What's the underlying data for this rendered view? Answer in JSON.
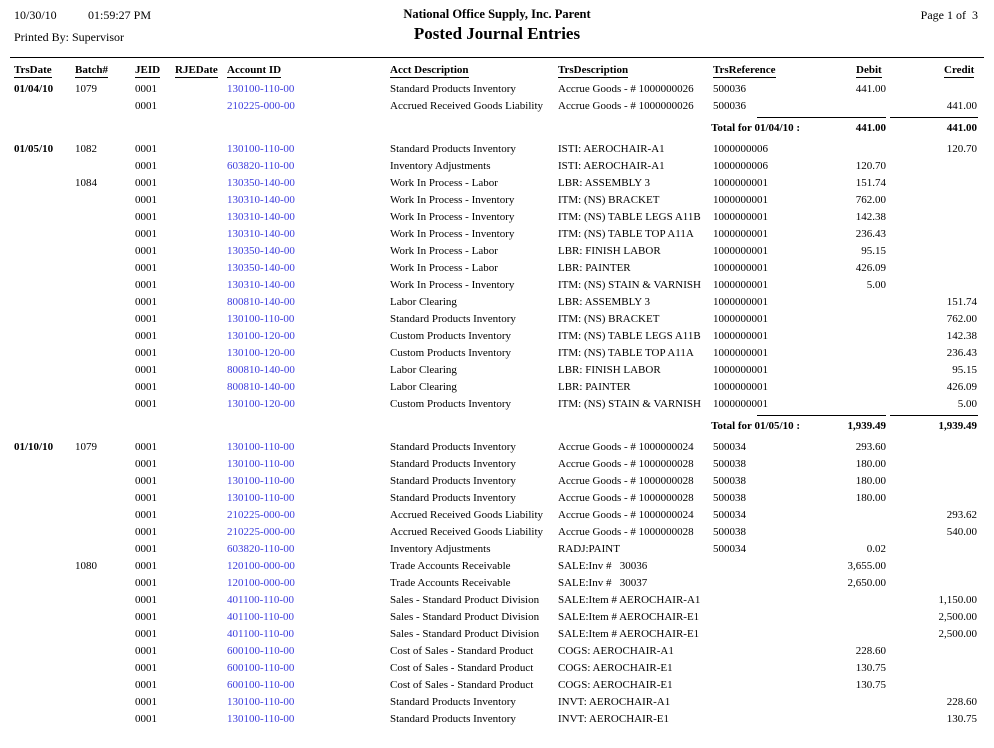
{
  "header": {
    "print_date": "10/30/10",
    "print_time": "01:59:27 PM",
    "printed_by": "Printed By: Supervisor",
    "company": "National Office Supply, Inc. Parent",
    "title": "Posted Journal Entries",
    "page_label": "Page 1 of  3"
  },
  "colors": {
    "account_link": "#3d3ddd",
    "text": "#000000",
    "background": "#ffffff"
  },
  "table": {
    "columns": [
      "TrsDate",
      "Batch#",
      "JEID",
      "RJEDate",
      "Account ID",
      "Acct Description",
      "TrsDescription",
      "TrsReference",
      "Debit",
      "Credit"
    ],
    "column_order": [
      "date",
      "batch",
      "jeid",
      "rjedate",
      "account_id",
      "acct_description",
      "trs_description",
      "trs_reference",
      "debit",
      "credit"
    ],
    "sections": [
      {
        "rows": [
          [
            "01/04/10",
            "1079",
            "0001",
            "",
            "130100-110-00",
            "Standard Products Inventory",
            "Accrue Goods - # 1000000026",
            "500036",
            "441.00",
            ""
          ],
          [
            "",
            "",
            "0001",
            "",
            "210225-000-00",
            "Accrued Received Goods Liability",
            "Accrue Goods - # 1000000026",
            "500036",
            "",
            "441.00"
          ]
        ],
        "total": {
          "label": "Total for 01/04/10 :",
          "debit": "441.00",
          "credit": "441.00"
        }
      },
      {
        "rows": [
          [
            "01/05/10",
            "1082",
            "0001",
            "",
            "130100-110-00",
            "Standard Products Inventory",
            "ISTI: AEROCHAIR-A1",
            "1000000006",
            "",
            "120.70"
          ],
          [
            "",
            "",
            "0001",
            "",
            "603820-110-00",
            "Inventory Adjustments",
            "ISTI: AEROCHAIR-A1",
            "1000000006",
            "120.70",
            ""
          ],
          [
            "",
            "1084",
            "0001",
            "",
            "130350-140-00",
            "Work In Process - Labor",
            "LBR: ASSEMBLY 3",
            "1000000001",
            "151.74",
            ""
          ],
          [
            "",
            "",
            "0001",
            "",
            "130310-140-00",
            "Work In Process - Inventory",
            "ITM: (NS) BRACKET",
            "1000000001",
            "762.00",
            ""
          ],
          [
            "",
            "",
            "0001",
            "",
            "130310-140-00",
            "Work In Process - Inventory",
            "ITM: (NS) TABLE LEGS A11B",
            "1000000001",
            "142.38",
            ""
          ],
          [
            "",
            "",
            "0001",
            "",
            "130310-140-00",
            "Work In Process - Inventory",
            "ITM: (NS) TABLE TOP A11A",
            "1000000001",
            "236.43",
            ""
          ],
          [
            "",
            "",
            "0001",
            "",
            "130350-140-00",
            "Work In Process - Labor",
            "LBR: FINISH LABOR",
            "1000000001",
            "95.15",
            ""
          ],
          [
            "",
            "",
            "0001",
            "",
            "130350-140-00",
            "Work In Process - Labor",
            "LBR: PAINTER",
            "1000000001",
            "426.09",
            ""
          ],
          [
            "",
            "",
            "0001",
            "",
            "130310-140-00",
            "Work In Process - Inventory",
            "ITM: (NS) STAIN & VARNISH",
            "1000000001",
            "5.00",
            ""
          ],
          [
            "",
            "",
            "0001",
            "",
            "800810-140-00",
            "Labor Clearing",
            "LBR: ASSEMBLY 3",
            "1000000001",
            "",
            "151.74"
          ],
          [
            "",
            "",
            "0001",
            "",
            "130100-110-00",
            "Standard Products Inventory",
            "ITM: (NS) BRACKET",
            "1000000001",
            "",
            "762.00"
          ],
          [
            "",
            "",
            "0001",
            "",
            "130100-120-00",
            "Custom Products Inventory",
            "ITM: (NS) TABLE LEGS A11B",
            "1000000001",
            "",
            "142.38"
          ],
          [
            "",
            "",
            "0001",
            "",
            "130100-120-00",
            "Custom Products Inventory",
            "ITM: (NS) TABLE TOP A11A",
            "1000000001",
            "",
            "236.43"
          ],
          [
            "",
            "",
            "0001",
            "",
            "800810-140-00",
            "Labor Clearing",
            "LBR: FINISH LABOR",
            "1000000001",
            "",
            "95.15"
          ],
          [
            "",
            "",
            "0001",
            "",
            "800810-140-00",
            "Labor Clearing",
            "LBR: PAINTER",
            "1000000001",
            "",
            "426.09"
          ],
          [
            "",
            "",
            "0001",
            "",
            "130100-120-00",
            "Custom Products Inventory",
            "ITM: (NS) STAIN & VARNISH",
            "1000000001",
            "",
            "5.00"
          ]
        ],
        "total": {
          "label": "Total for 01/05/10 :",
          "debit": "1,939.49",
          "credit": "1,939.49"
        }
      },
      {
        "rows": [
          [
            "01/10/10",
            "1079",
            "0001",
            "",
            "130100-110-00",
            "Standard Products Inventory",
            "Accrue Goods - # 1000000024",
            "500034",
            "293.60",
            ""
          ],
          [
            "",
            "",
            "0001",
            "",
            "130100-110-00",
            "Standard Products Inventory",
            "Accrue Goods - # 1000000028",
            "500038",
            "180.00",
            ""
          ],
          [
            "",
            "",
            "0001",
            "",
            "130100-110-00",
            "Standard Products Inventory",
            "Accrue Goods - # 1000000028",
            "500038",
            "180.00",
            ""
          ],
          [
            "",
            "",
            "0001",
            "",
            "130100-110-00",
            "Standard Products Inventory",
            "Accrue Goods - # 1000000028",
            "500038",
            "180.00",
            ""
          ],
          [
            "",
            "",
            "0001",
            "",
            "210225-000-00",
            "Accrued Received Goods Liability",
            "Accrue Goods - # 1000000024",
            "500034",
            "",
            "293.62"
          ],
          [
            "",
            "",
            "0001",
            "",
            "210225-000-00",
            "Accrued Received Goods Liability",
            "Accrue Goods - # 1000000028",
            "500038",
            "",
            "540.00"
          ],
          [
            "",
            "",
            "0001",
            "",
            "603820-110-00",
            "Inventory Adjustments",
            "RADJ:PAINT",
            "500034",
            "0.02",
            ""
          ],
          [
            "",
            "1080",
            "0001",
            "",
            "120100-000-00",
            "Trade Accounts Receivable",
            "SALE:Inv #   30036",
            "",
            "3,655.00",
            ""
          ],
          [
            "",
            "",
            "0001",
            "",
            "120100-000-00",
            "Trade Accounts Receivable",
            "SALE:Inv #   30037",
            "",
            "2,650.00",
            ""
          ],
          [
            "",
            "",
            "0001",
            "",
            "401100-110-00",
            "Sales - Standard Product Division",
            "SALE:Item # AEROCHAIR-A1",
            "",
            "",
            "1,150.00"
          ],
          [
            "",
            "",
            "0001",
            "",
            "401100-110-00",
            "Sales - Standard Product Division",
            "SALE:Item # AEROCHAIR-E1",
            "",
            "",
            "2,500.00"
          ],
          [
            "",
            "",
            "0001",
            "",
            "401100-110-00",
            "Sales - Standard Product Division",
            "SALE:Item # AEROCHAIR-E1",
            "",
            "",
            "2,500.00"
          ],
          [
            "",
            "",
            "0001",
            "",
            "600100-110-00",
            "Cost of Sales - Standard Product",
            "COGS: AEROCHAIR-A1",
            "",
            "228.60",
            ""
          ],
          [
            "",
            "",
            "0001",
            "",
            "600100-110-00",
            "Cost of Sales - Standard Product",
            "COGS: AEROCHAIR-E1",
            "",
            "130.75",
            ""
          ],
          [
            "",
            "",
            "0001",
            "",
            "600100-110-00",
            "Cost of Sales - Standard Product",
            "COGS: AEROCHAIR-E1",
            "",
            "130.75",
            ""
          ],
          [
            "",
            "",
            "0001",
            "",
            "130100-110-00",
            "Standard Products Inventory",
            "INVT: AEROCHAIR-A1",
            "",
            "",
            "228.60"
          ],
          [
            "",
            "",
            "0001",
            "",
            "130100-110-00",
            "Standard Products Inventory",
            "INVT: AEROCHAIR-E1",
            "",
            "",
            "130.75"
          ]
        ],
        "total": null
      }
    ]
  }
}
